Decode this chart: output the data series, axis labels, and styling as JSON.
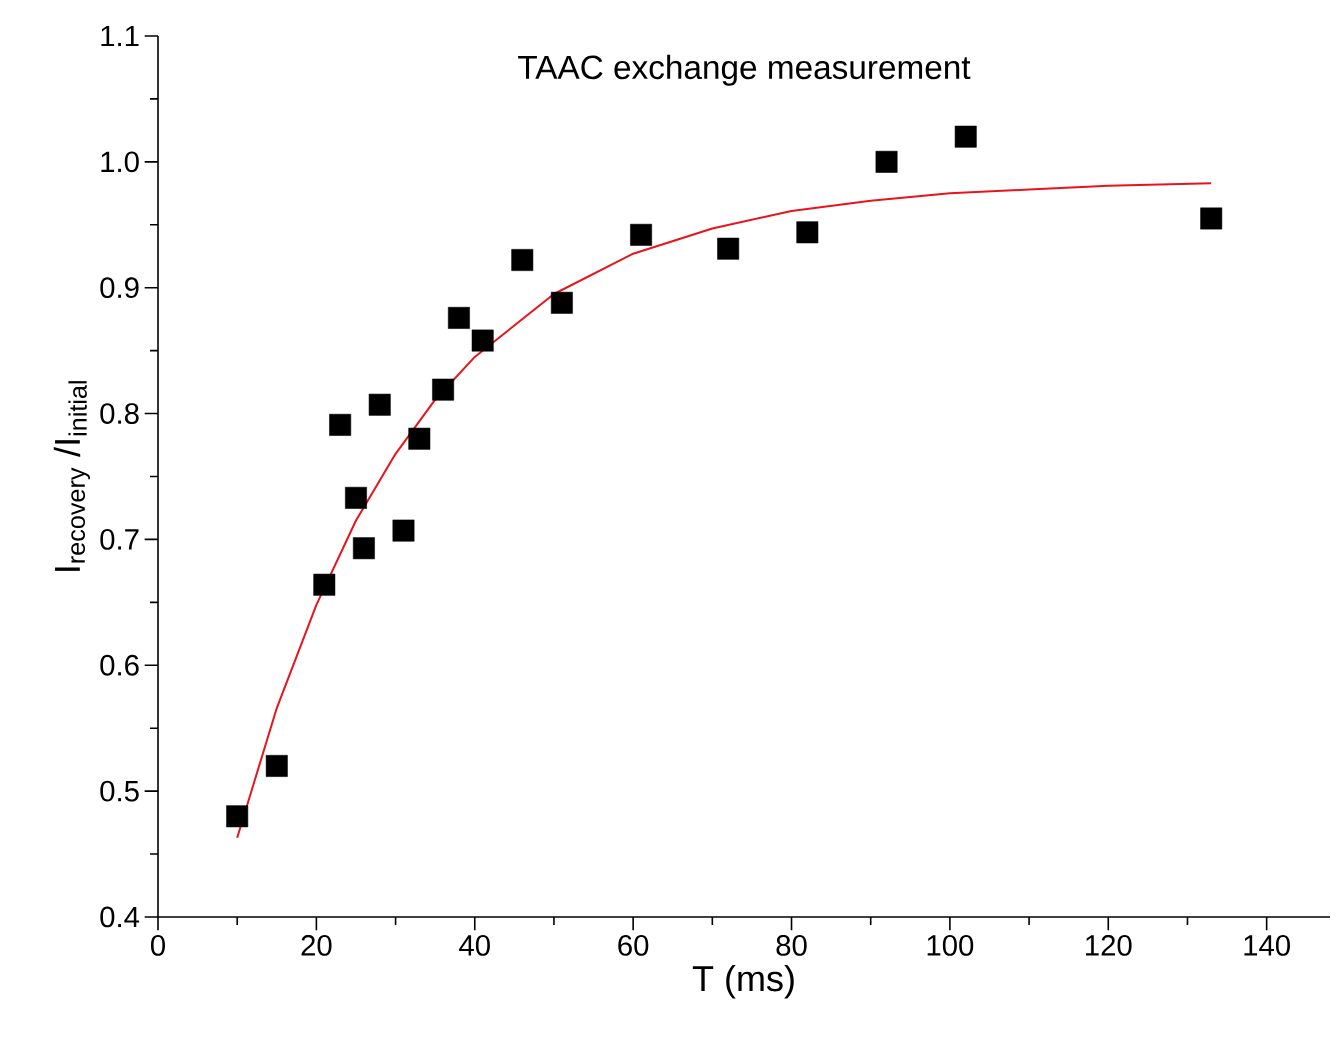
{
  "chart_data": {
    "type": "scatter",
    "title": "TAAC exchange measurement",
    "xlabel": "T (ms)",
    "ylabel": "I$_{recovery}$ /I$_{initial}$",
    "xlim": [
      0,
      148
    ],
    "xticks": [
      0,
      20,
      40,
      60,
      80,
      100,
      120,
      140
    ],
    "ylim": [
      0.4,
      1.1
    ],
    "yticks": [
      0.4,
      0.5,
      0.6,
      0.7,
      0.8,
      0.9,
      {
        "value": 1.0,
        "label": "1.0"
      },
      1.1
    ],
    "grid": false,
    "series": [
      {
        "color": "#000000",
        "marker": "square",
        "x": [
          10,
          15,
          21,
          23,
          25,
          26,
          28,
          31,
          33,
          36,
          38,
          41,
          46,
          51,
          61,
          72,
          82,
          92,
          102,
          133
        ],
        "values": [
          0.48,
          0.52,
          0.664,
          0.791,
          0.733,
          0.693,
          0.807,
          0.707,
          0.78,
          0.819,
          0.876,
          0.858,
          0.922,
          0.888,
          0.942,
          0.931,
          0.944,
          1.0,
          1.02,
          0.955
        ]
      },
      {
        "type": "line",
        "color": "#e8141c",
        "marker": "none",
        "line_style": "solid",
        "x": [
          10,
          15,
          20,
          25,
          30,
          35,
          40,
          50,
          60,
          70,
          80,
          90,
          100,
          110,
          120,
          133
        ],
        "values": [
          0.463,
          0.566,
          0.648,
          0.715,
          0.768,
          0.811,
          0.845,
          0.895,
          0.927,
          0.947,
          0.961,
          0.969,
          0.975,
          0.978,
          0.981,
          0.983
        ]
      }
    ]
  }
}
